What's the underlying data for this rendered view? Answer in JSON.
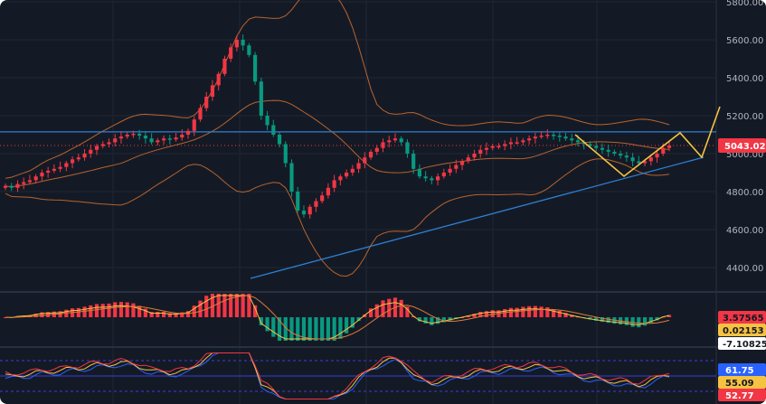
{
  "chart_data": [
    {
      "type": "candlestick",
      "yticks": [
        4400,
        4600,
        4800,
        5000,
        5200,
        5400,
        5600,
        5800
      ],
      "ylim": [
        4300,
        5820
      ],
      "last_price_label": "5043.02",
      "last_price": 5043.02,
      "resistance_level": 5115,
      "grid": true,
      "series_colors": {
        "up": "#f23645",
        "down": "#089981",
        "bands": "#b8632f",
        "horizontal": "#2f7fd4",
        "trendline": "#2f7fd4",
        "projection": "#f5c242"
      },
      "close": [
        4830,
        4820,
        4840,
        4850,
        4860,
        4880,
        4900,
        4910,
        4920,
        4930,
        4950,
        4970,
        4980,
        5000,
        5020,
        5040,
        5050,
        5060,
        5080,
        5090,
        5100,
        5105,
        5095,
        5080,
        5060,
        5070,
        5080,
        5075,
        5085,
        5100,
        5120,
        5180,
        5240,
        5300,
        5360,
        5420,
        5500,
        5560,
        5600,
        5570,
        5520,
        5380,
        5200,
        5150,
        5100,
        5050,
        4950,
        4800,
        4700,
        4680,
        4720,
        4750,
        4780,
        4820,
        4860,
        4880,
        4900,
        4920,
        4950,
        4980,
        5010,
        5030,
        5060,
        5070,
        5080,
        5060,
        5000,
        4920,
        4880,
        4870,
        4860,
        4880,
        4900,
        4920,
        4940,
        4960,
        4980,
        5000,
        5020,
        5030,
        5040,
        5040,
        5050,
        5060,
        5060,
        5070,
        5080,
        5090,
        5095,
        5100,
        5095,
        5090,
        5080,
        5070,
        5060,
        5050,
        5040,
        5030,
        5020,
        5010,
        5000,
        4990,
        4980,
        4960,
        4950,
        4960,
        4980,
        5000,
        5030,
        5043
      ]
    },
    {
      "type": "histogram",
      "labels": [
        "3.57565",
        "0.02153",
        "-7.10825"
      ],
      "label_colors": [
        "#f23645",
        "#f5c242",
        "#ffffff"
      ]
    },
    {
      "type": "line",
      "labels": [
        "61.75",
        "55.09",
        "52.77"
      ],
      "label_colors": [
        "#2962ff",
        "#f5c242",
        "#f23645"
      ],
      "levels": [
        70,
        50,
        30
      ]
    }
  ]
}
